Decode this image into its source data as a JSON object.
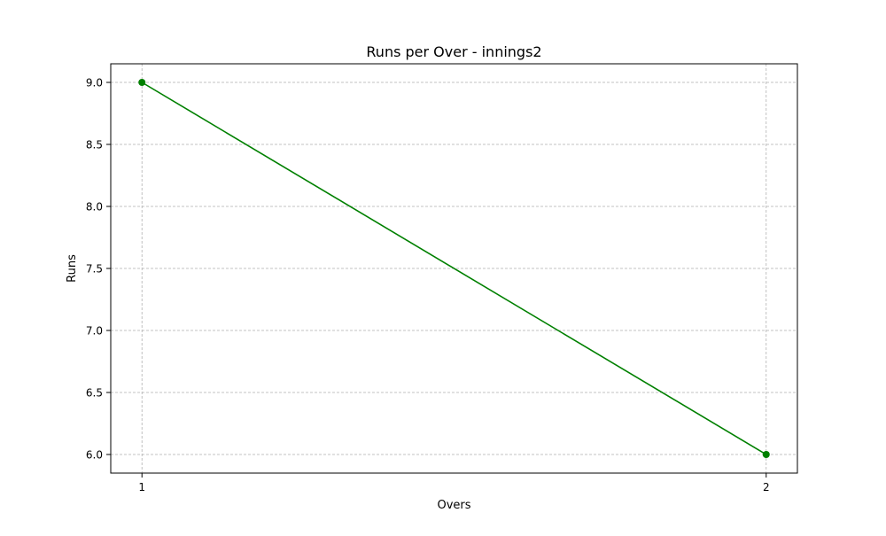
{
  "chart_data": {
    "type": "line",
    "title": "Runs per Over - innings2",
    "xlabel": "Overs",
    "ylabel": "Runs",
    "x": [
      1,
      2
    ],
    "series": [
      {
        "values": [
          9.0,
          6.0
        ],
        "color": "#008000",
        "marker": "circle"
      }
    ],
    "xlim": [
      0.95,
      2.05
    ],
    "ylim": [
      5.85,
      9.15
    ],
    "xticks": [
      1,
      2
    ],
    "xtick_labels": [
      "1",
      "2"
    ],
    "yticks": [
      6.0,
      6.5,
      7.0,
      7.5,
      8.0,
      8.5,
      9.0
    ],
    "ytick_labels": [
      "6.0",
      "6.5",
      "7.0",
      "7.5",
      "8.0",
      "8.5",
      "9.0"
    ],
    "grid": true,
    "grid_style": "dashed"
  }
}
